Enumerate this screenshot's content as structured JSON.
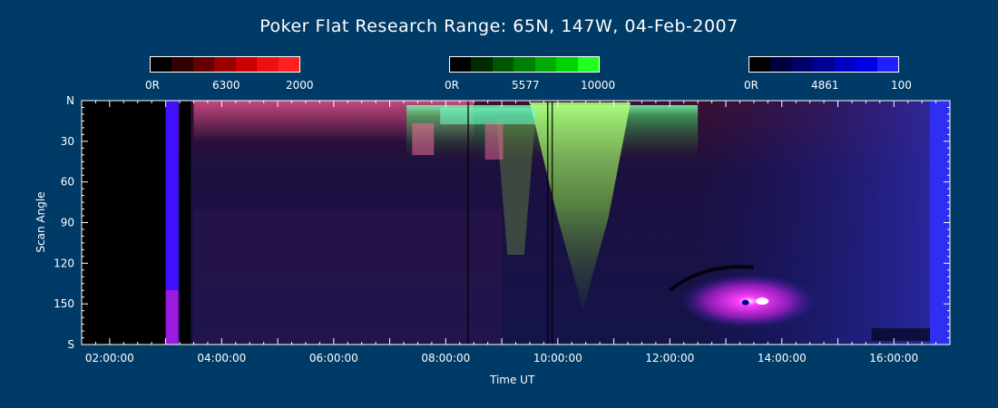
{
  "title": "Poker Flat Research Range: 65N, 147W, 04-Feb-2007",
  "colorbars": [
    {
      "name": "6300",
      "min_label": "0R",
      "mid_label": "6300",
      "max_label": "2000",
      "colors": [
        "#000000",
        "#330000",
        "#660000",
        "#990000",
        "#cc0000",
        "#ee1010",
        "#ff2020"
      ]
    },
    {
      "name": "5577",
      "min_label": "0R",
      "mid_label": "5577",
      "max_label": "10000",
      "colors": [
        "#000000",
        "#002a00",
        "#005500",
        "#008000",
        "#00aa00",
        "#00d400",
        "#20ff20"
      ]
    },
    {
      "name": "4861",
      "min_label": "0R",
      "mid_label": "4861",
      "max_label": "100",
      "colors": [
        "#000000",
        "#000040",
        "#00006a",
        "#000095",
        "#0000c0",
        "#0000e6",
        "#2020ff"
      ]
    }
  ],
  "chart_data": {
    "type": "heatmap",
    "title": "Poker Flat Research Range: 65N, 147W, 04-Feb-2007",
    "xlabel": "Time UT",
    "ylabel": "Scan Angle",
    "x_range_hours": [
      1.5,
      17.0
    ],
    "y_range": [
      0,
      180
    ],
    "x_ticks": [
      {
        "hour": 2,
        "label": "02:00:00"
      },
      {
        "hour": 4,
        "label": "04:00:00"
      },
      {
        "hour": 6,
        "label": "06:00:00"
      },
      {
        "hour": 8,
        "label": "08:00:00"
      },
      {
        "hour": 10,
        "label": "10:00:00"
      },
      {
        "hour": 12,
        "label": "12:00:00"
      },
      {
        "hour": 14,
        "label": "14:00:00"
      },
      {
        "hour": 16,
        "label": "16:00:00"
      }
    ],
    "y_ticks": [
      {
        "value": 0,
        "label": "N"
      },
      {
        "value": 30,
        "label": "30"
      },
      {
        "value": 60,
        "label": "60"
      },
      {
        "value": 90,
        "label": "90"
      },
      {
        "value": 120,
        "label": "120"
      },
      {
        "value": 150,
        "label": "150"
      },
      {
        "value": 180,
        "label": "S"
      }
    ],
    "data_start_hour": 3.0,
    "data_gap_hours": [
      3.25,
      3.45
    ],
    "emissions": [
      "6300",
      "5577",
      "4861"
    ]
  }
}
